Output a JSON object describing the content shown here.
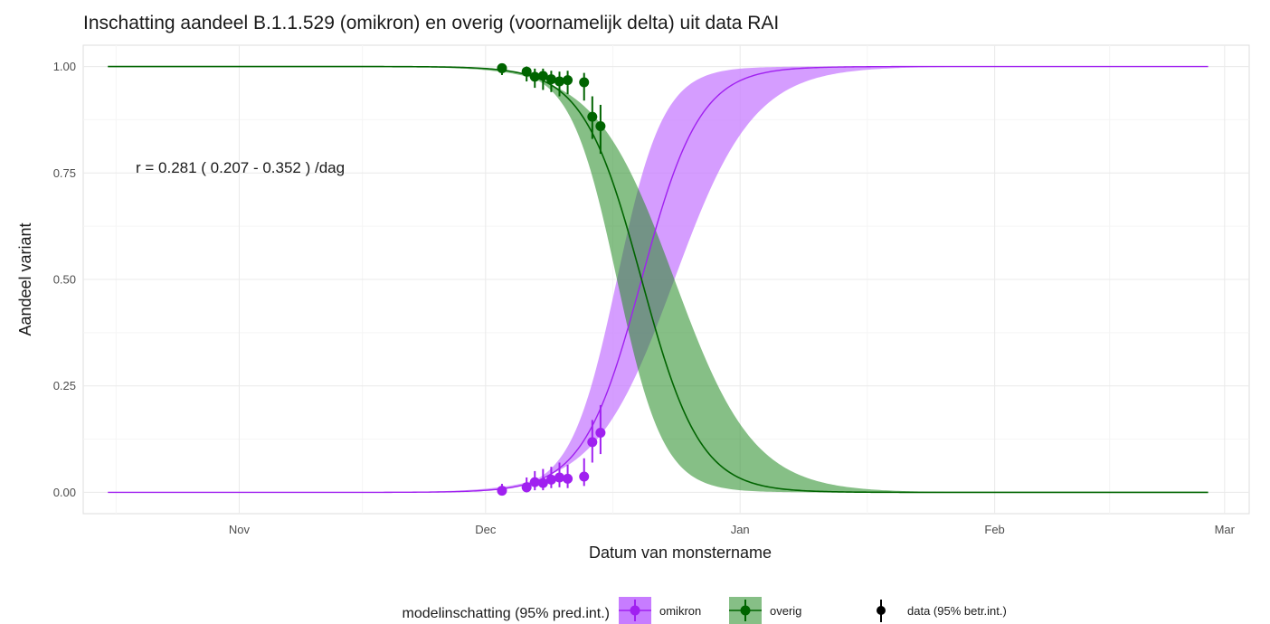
{
  "chart_data": {
    "type": "line",
    "title": "Inschatting aandeel B.1.1.529 (omikron) en overig (voornamelijk delta) uit data RAI",
    "xlabel": "Datum van monstername",
    "ylabel": "Aandeel variant",
    "x_axis_type": "date",
    "xlim": [
      "2021-10-13",
      "2022-03-04"
    ],
    "ylim": [
      -0.05,
      1.05
    ],
    "x_ticks": [
      {
        "date": "2021-11-01",
        "label": "Nov"
      },
      {
        "date": "2021-12-01",
        "label": "Dec"
      },
      {
        "date": "2022-01-01",
        "label": "Jan"
      },
      {
        "date": "2022-02-01",
        "label": "Feb"
      },
      {
        "date": "2022-03-01",
        "label": "Mar"
      }
    ],
    "y_ticks": [
      "0.00",
      "0.25",
      "0.50",
      "0.75",
      "1.00"
    ],
    "grid": true,
    "annotation": "r =  0.281 ( 0.207 - 0.352 ) /dag",
    "model": {
      "x_start": "2021-10-16",
      "x_end": "2022-02-27",
      "midpoint": "2021-12-20",
      "midpoint_low": "2021-12-17",
      "midpoint_high": "2021-12-24",
      "rate": 0.281,
      "rate_low": 0.207,
      "rate_high": 0.352
    },
    "series": [
      {
        "name": "omikron",
        "color": "#a020f0",
        "band_color": "#c77cff",
        "points": [
          {
            "x": "2021-12-03",
            "y": 0.004,
            "lo": 0.0,
            "hi": 0.02
          },
          {
            "x": "2021-12-06",
            "y": 0.012,
            "lo": 0.0,
            "hi": 0.035
          },
          {
            "x": "2021-12-07",
            "y": 0.024,
            "lo": 0.005,
            "hi": 0.05
          },
          {
            "x": "2021-12-08",
            "y": 0.022,
            "lo": 0.005,
            "hi": 0.055
          },
          {
            "x": "2021-12-09",
            "y": 0.03,
            "lo": 0.01,
            "hi": 0.06
          },
          {
            "x": "2021-12-10",
            "y": 0.035,
            "lo": 0.012,
            "hi": 0.07
          },
          {
            "x": "2021-12-11",
            "y": 0.032,
            "lo": 0.01,
            "hi": 0.065
          },
          {
            "x": "2021-12-13",
            "y": 0.037,
            "lo": 0.015,
            "hi": 0.08
          },
          {
            "x": "2021-12-14",
            "y": 0.118,
            "lo": 0.07,
            "hi": 0.17
          },
          {
            "x": "2021-12-15",
            "y": 0.14,
            "lo": 0.09,
            "hi": 0.205
          }
        ]
      },
      {
        "name": "overig",
        "color": "#006400",
        "band_color": "#228b22",
        "points": [
          {
            "x": "2021-12-03",
            "y": 0.996,
            "lo": 0.98,
            "hi": 1.0
          },
          {
            "x": "2021-12-06",
            "y": 0.988,
            "lo": 0.965,
            "hi": 1.0
          },
          {
            "x": "2021-12-07",
            "y": 0.976,
            "lo": 0.95,
            "hi": 0.995
          },
          {
            "x": "2021-12-08",
            "y": 0.978,
            "lo": 0.945,
            "hi": 0.995
          },
          {
            "x": "2021-12-09",
            "y": 0.97,
            "lo": 0.94,
            "hi": 0.99
          },
          {
            "x": "2021-12-10",
            "y": 0.965,
            "lo": 0.93,
            "hi": 0.988
          },
          {
            "x": "2021-12-11",
            "y": 0.968,
            "lo": 0.935,
            "hi": 0.99
          },
          {
            "x": "2021-12-13",
            "y": 0.963,
            "lo": 0.92,
            "hi": 0.985
          },
          {
            "x": "2021-12-14",
            "y": 0.882,
            "lo": 0.83,
            "hi": 0.93
          },
          {
            "x": "2021-12-15",
            "y": 0.86,
            "lo": 0.795,
            "hi": 0.91
          }
        ]
      }
    ],
    "legend": {
      "position": "bottom",
      "model_title": "modelinschatting (95% pred.int.)",
      "items": [
        "omikron",
        "overig"
      ],
      "data_label": "data (95% betr.int.)"
    }
  }
}
